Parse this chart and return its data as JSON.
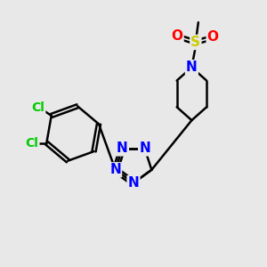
{
  "bg_color": "#e8e8e8",
  "atom_colors": {
    "N": "#0000ff",
    "S": "#cccc00",
    "O": "#ff0000",
    "Cl": "#00cc00"
  },
  "bond_color": "#000000",
  "bond_width": 1.8,
  "figsize": [
    3.0,
    3.0
  ],
  "dpi": 100,
  "xlim": [
    0,
    10
  ],
  "ylim": [
    0,
    10
  ]
}
